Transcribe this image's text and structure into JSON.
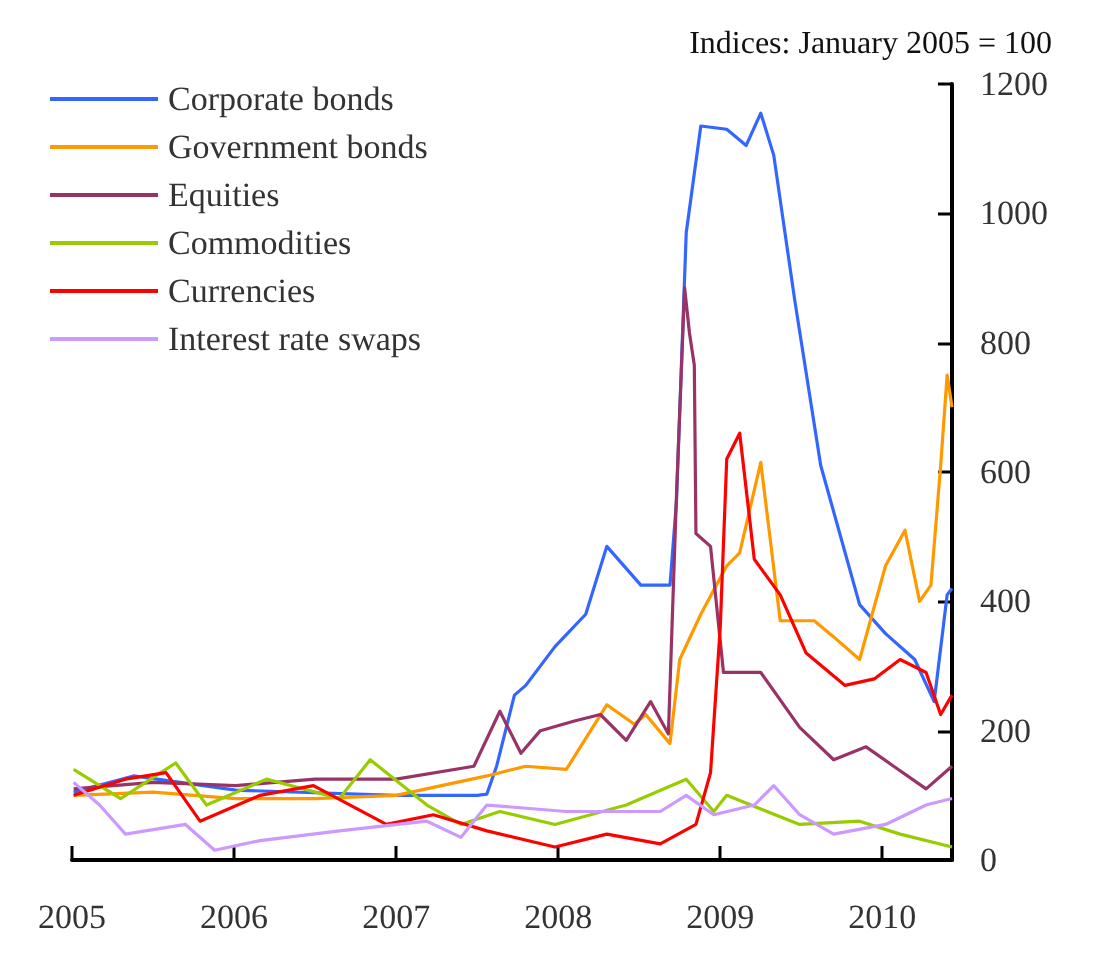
{
  "chart_data": {
    "type": "line",
    "ylabel": "Indices: January 2005 = 100",
    "xlim": [
      2005,
      2010.43
    ],
    "xticks": [
      2005,
      2006,
      2007,
      2008,
      2009,
      2010
    ],
    "ylim": [
      0,
      1200
    ],
    "yticks": [
      0,
      200,
      400,
      600,
      800,
      1000,
      1200
    ],
    "grid": false,
    "legend": "top left",
    "marker": "none",
    "series": [
      {
        "name": "Corporate bonds",
        "color": "#3366ff",
        "x": [
          2005.01,
          2005.38,
          2006.01,
          2007.0,
          2007.5,
          2007.56,
          2007.62,
          2007.73,
          2007.8,
          2007.98,
          2008.17,
          2008.3,
          2008.51,
          2008.69,
          2008.73,
          2008.79,
          2008.88,
          2009.04,
          2009.16,
          2009.25,
          2009.33,
          2009.46,
          2009.62,
          2009.86,
          2010.02,
          2010.2,
          2010.32,
          2010.4,
          2010.43
        ],
        "values": [
          105,
          130,
          108,
          100,
          100,
          102,
          145,
          255,
          270,
          330,
          380,
          485,
          425,
          425,
          555,
          970,
          1135,
          1130,
          1105,
          1155,
          1090,
          865,
          610,
          395,
          350,
          310,
          245,
          410,
          420
        ]
      },
      {
        "name": "Government bonds",
        "color": "#ff9900",
        "x": [
          2005.01,
          2005.5,
          2006.01,
          2006.5,
          2007.0,
          2007.56,
          2007.8,
          2008.05,
          2008.3,
          2008.47,
          2008.54,
          2008.69,
          2008.75,
          2008.88,
          2009.04,
          2009.12,
          2009.25,
          2009.37,
          2009.58,
          2009.7,
          2009.86,
          2010.02,
          2010.14,
          2010.23,
          2010.3,
          2010.36,
          2010.4,
          2010.43
        ],
        "values": [
          100,
          105,
          95,
          95,
          100,
          130,
          145,
          140,
          240,
          210,
          225,
          180,
          310,
          380,
          455,
          475,
          615,
          370,
          370,
          345,
          310,
          455,
          510,
          400,
          425,
          610,
          750,
          700
        ]
      },
      {
        "name": "Equities",
        "color": "#993366",
        "x": [
          2005.01,
          2005.5,
          2006.01,
          2006.5,
          2007.0,
          2007.48,
          2007.64,
          2007.77,
          2007.89,
          2008.1,
          2008.26,
          2008.42,
          2008.57,
          2008.68,
          2008.73,
          2008.78,
          2008.81,
          2008.84,
          2008.85,
          2008.94,
          2009.02,
          2009.25,
          2009.49,
          2009.7,
          2009.9,
          2010.07,
          2010.27,
          2010.43
        ],
        "values": [
          110,
          120,
          115,
          125,
          125,
          145,
          230,
          165,
          200,
          215,
          225,
          185,
          245,
          195,
          565,
          885,
          815,
          765,
          505,
          485,
          290,
          290,
          205,
          155,
          175,
          145,
          110,
          145
        ]
      },
      {
        "name": "Commodities",
        "color": "#99cc00",
        "x": [
          2005.01,
          2005.3,
          2005.64,
          2005.83,
          2006.2,
          2006.65,
          2006.84,
          2007.19,
          2007.4,
          2007.64,
          2007.98,
          2008.42,
          2008.79,
          2008.96,
          2009.04,
          2009.49,
          2009.86,
          2010.11,
          2010.43
        ],
        "values": [
          140,
          95,
          150,
          85,
          125,
          95,
          155,
          85,
          55,
          75,
          55,
          85,
          125,
          75,
          100,
          55,
          60,
          40,
          20
        ]
      },
      {
        "name": "Currencies",
        "color": "#ff0000",
        "x": [
          2005.01,
          2005.33,
          2005.58,
          2005.79,
          2006.16,
          2006.49,
          2006.94,
          2007.23,
          2007.56,
          2007.98,
          2008.3,
          2008.63,
          2008.85,
          2008.94,
          2009.0,
          2009.04,
          2009.12,
          2009.15,
          2009.21,
          2009.37,
          2009.53,
          2009.77,
          2009.95,
          2010.11,
          2010.27,
          2010.36,
          2010.43
        ],
        "values": [
          100,
          125,
          135,
          60,
          100,
          115,
          55,
          70,
          45,
          20,
          40,
          25,
          55,
          135,
          360,
          620,
          660,
          595,
          465,
          410,
          320,
          270,
          280,
          310,
          290,
          225,
          255
        ]
      },
      {
        "name": "Interest rate swaps",
        "color": "#cc99ff",
        "x": [
          2005.01,
          2005.17,
          2005.33,
          2005.7,
          2005.88,
          2006.16,
          2006.65,
          2007.19,
          2007.4,
          2007.56,
          2008.05,
          2008.63,
          2008.79,
          2008.96,
          2009.21,
          2009.33,
          2009.49,
          2009.7,
          2010.02,
          2010.27,
          2010.43
        ],
        "values": [
          120,
          85,
          40,
          55,
          15,
          30,
          45,
          60,
          35,
          85,
          75,
          75,
          100,
          70,
          85,
          115,
          70,
          40,
          55,
          85,
          95
        ]
      }
    ]
  }
}
